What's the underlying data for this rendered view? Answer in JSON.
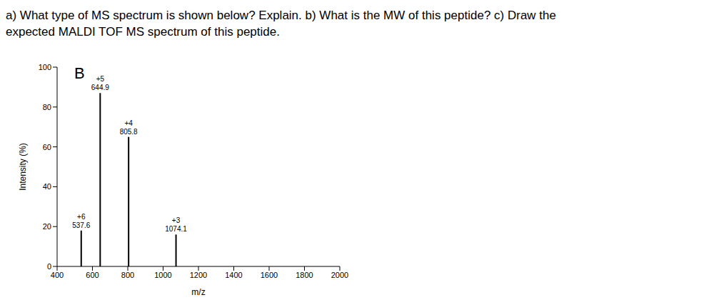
{
  "question": [
    "a) What type of MS spectrum is shown below? Explain. b) What is the MW of this peptide? c) Draw the",
    "expected MALDI TOF MS spectrum of this peptide."
  ],
  "chart_data": {
    "type": "bar",
    "annotation": "B",
    "x_label": "m/z",
    "y_label": "Intensity (%)",
    "x": [
      537.6,
      644.9,
      805.8,
      1074.1
    ],
    "values": [
      18,
      87,
      65,
      16
    ],
    "charge_labels": [
      "+6",
      "+5",
      "+4",
      "+3"
    ],
    "color": "#000000",
    "xlim": [
      400,
      2000
    ],
    "xticks": [
      400,
      600,
      800,
      1000,
      1200,
      1400,
      1600,
      1800,
      2000
    ],
    "ylim": [
      0,
      100
    ],
    "yticks": [
      0,
      20,
      40,
      60,
      80,
      100
    ],
    "grid": false,
    "data_labels": true
  }
}
